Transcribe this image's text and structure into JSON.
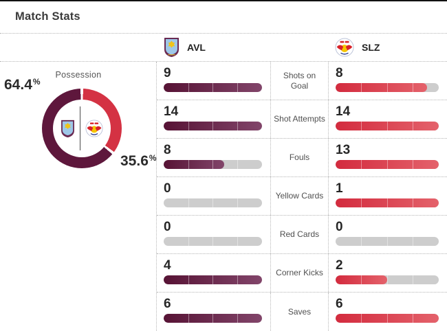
{
  "page": {
    "title": "Match Stats"
  },
  "teams": {
    "home": {
      "abbr": "AVL",
      "badge_icon": "aston-villa-crest"
    },
    "away": {
      "abbr": "SLZ",
      "badge_icon": "red-bull-salzburg-crest"
    }
  },
  "possession": {
    "label": "Possession",
    "home_pct": "64.4",
    "away_pct": "35.6",
    "unit": "%"
  },
  "stats": [
    {
      "label": "Shots on Goal",
      "home": 9,
      "away": 8
    },
    {
      "label": "Shot Attempts",
      "home": 14,
      "away": 14
    },
    {
      "label": "Fouls",
      "home": 8,
      "away": 13
    },
    {
      "label": "Yellow Cards",
      "home": 0,
      "away": 1
    },
    {
      "label": "Red Cards",
      "home": 0,
      "away": 0
    },
    {
      "label": "Corner Kicks",
      "home": 4,
      "away": 2
    },
    {
      "label": "Saves",
      "home": 6,
      "away": 6
    }
  ],
  "colors": {
    "home_primary": "#5e173c",
    "home_gradient_end": "#82456a",
    "away_primary": "#d43243",
    "away_gradient_end": "#e4626b",
    "empty_track": "#cdcdcd",
    "top_bar": "#111111"
  },
  "chart_data": [
    {
      "type": "pie",
      "title": "Possession",
      "labels": [
        "AVL",
        "SLZ"
      ],
      "values": [
        64.4,
        35.6
      ],
      "unit": "%",
      "colors": [
        "#5e173c",
        "#d43243"
      ],
      "donut": true,
      "start": "top, away slice clockwise"
    },
    {
      "type": "bar",
      "title": "Match Stats",
      "categories": [
        "Shots on Goal",
        "Shot Attempts",
        "Fouls",
        "Yellow Cards",
        "Red Cards",
        "Corner Kicks",
        "Saves"
      ],
      "series": [
        {
          "name": "AVL",
          "values": [
            9,
            14,
            8,
            0,
            0,
            4,
            6
          ]
        },
        {
          "name": "SLZ",
          "values": [
            8,
            14,
            13,
            1,
            0,
            2,
            6
          ]
        }
      ],
      "layout": "horizontal paired bars, each bar scaled to the max of its row, gray remainder track"
    }
  ]
}
